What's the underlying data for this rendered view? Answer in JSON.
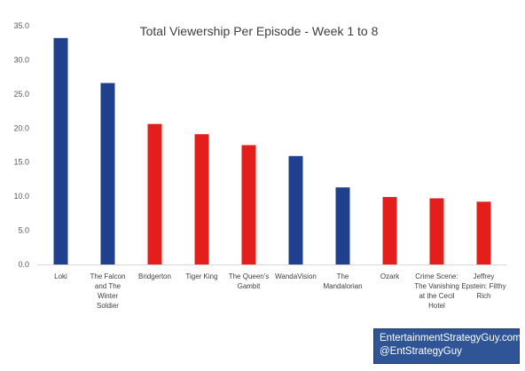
{
  "chart_data": {
    "type": "bar",
    "title": "Total Viewership Per Episode - Week 1 to 8",
    "xlabel": "",
    "ylabel": "",
    "ylim": [
      0,
      35
    ],
    "yticks": [
      "0.0",
      "5.0",
      "10.0",
      "15.0",
      "20.0",
      "25.0",
      "30.0",
      "35.0"
    ],
    "grid": false,
    "legend": "none",
    "categories": [
      [
        "Loki"
      ],
      [
        "The Falcon",
        "and The",
        "Winter",
        "Soldier"
      ],
      [
        "Bridgerton"
      ],
      [
        "Tiger King"
      ],
      [
        "The Queen's",
        "Gambit"
      ],
      [
        "WandaVision"
      ],
      [
        "The",
        "Mandalorian"
      ],
      [
        "Ozark"
      ],
      [
        "Crime Scene:",
        "The Vanishing",
        "at the Cecil",
        "Hotel"
      ],
      [
        "Jeffrey",
        "Epstein: Filthy",
        "Rich"
      ]
    ],
    "values": [
      33.2,
      26.6,
      20.6,
      19.1,
      17.5,
      15.9,
      11.3,
      9.9,
      9.7,
      9.2
    ],
    "bar_colors": [
      "#203f8c",
      "#203f8c",
      "#e41e1a",
      "#e41e1a",
      "#e41e1a",
      "#203f8c",
      "#203f8c",
      "#e41e1a",
      "#e41e1a",
      "#e41e1a"
    ]
  },
  "credit": {
    "line1": "EntertainmentStrategyGuy.com",
    "line2": "@EntStrategyGuy",
    "background": "#2f5597"
  }
}
